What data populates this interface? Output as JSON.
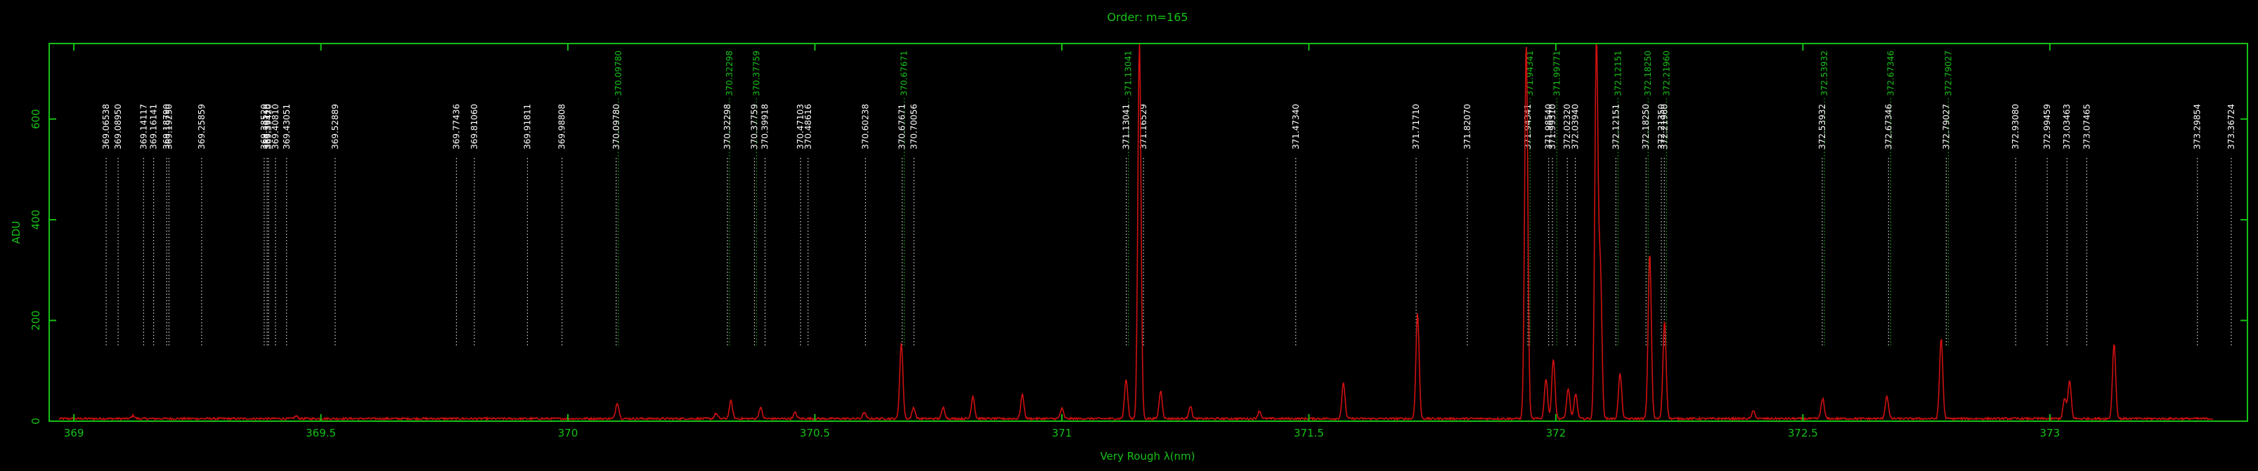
{
  "chart_data": {
    "type": "line",
    "title": "Order: m=165",
    "xlabel": "Very Rough λ(nm)",
    "ylabel": "ADU",
    "xlim": [
      368.95,
      373.4
    ],
    "ylim": [
      0,
      750
    ],
    "x_ticks": [
      369,
      369.5,
      370,
      370.5,
      371,
      371.5,
      372,
      372.5,
      373
    ],
    "x_tick_labels": [
      "369",
      "369.5",
      "370",
      "370.5",
      "371",
      "371.5",
      "372",
      "372.5",
      "373"
    ],
    "y_ticks": [
      0,
      200,
      400,
      600
    ],
    "y_tick_labels": [
      "0",
      "200",
      "400",
      "600"
    ],
    "grid": false,
    "series_color": "#d01010",
    "axis_color": "#16c016",
    "reference_lines_white": [
      {
        "x": 369.06538,
        "label": "369.06538"
      },
      {
        "x": 369.0895,
        "label": "369.08950"
      },
      {
        "x": 369.14117,
        "label": "369.14117"
      },
      {
        "x": 369.16141,
        "label": "369.16141"
      },
      {
        "x": 369.1879,
        "label": "369.18790"
      },
      {
        "x": 369.1925,
        "label": "369.19250"
      },
      {
        "x": 369.25859,
        "label": "369.25859"
      },
      {
        "x": 369.3852,
        "label": "369.38520"
      },
      {
        "x": 369.3911,
        "label": "369.39110"
      },
      {
        "x": 369.3942,
        "label": "369.39420"
      },
      {
        "x": 369.4081,
        "label": "369.40810"
      },
      {
        "x": 369.43051,
        "label": "369.43051"
      },
      {
        "x": 369.52889,
        "label": "369.52889"
      },
      {
        "x": 369.77436,
        "label": "369.77436"
      },
      {
        "x": 369.8106,
        "label": "369.81060"
      },
      {
        "x": 369.91811,
        "label": "369.91811"
      },
      {
        "x": 369.98808,
        "label": "369.98808"
      },
      {
        "x": 370.0978,
        "label": "370.09780"
      },
      {
        "x": 370.32298,
        "label": "370.32298"
      },
      {
        "x": 370.37759,
        "label": "370.37759"
      },
      {
        "x": 370.39918,
        "label": "370.39918"
      },
      {
        "x": 370.47103,
        "label": "370.47103"
      },
      {
        "x": 370.48616,
        "label": "370.48616"
      },
      {
        "x": 370.60238,
        "label": "370.60238"
      },
      {
        "x": 370.67671,
        "label": "370.67671"
      },
      {
        "x": 370.70056,
        "label": "370.70056"
      },
      {
        "x": 371.13041,
        "label": "371.13041"
      },
      {
        "x": 371.16529,
        "label": "371.16529"
      },
      {
        "x": 371.4734,
        "label": "371.47340"
      },
      {
        "x": 371.7171,
        "label": "371.71710"
      },
      {
        "x": 371.8207,
        "label": "371.82070"
      },
      {
        "x": 371.94341,
        "label": "371.94341"
      },
      {
        "x": 371.9854,
        "label": "371.98540"
      },
      {
        "x": 371.9931,
        "label": "371.99310"
      },
      {
        "x": 372.0232,
        "label": "372.02320"
      },
      {
        "x": 372.0394,
        "label": "372.03940"
      },
      {
        "x": 372.12151,
        "label": "372.12151"
      },
      {
        "x": 372.1825,
        "label": "372.18250"
      },
      {
        "x": 372.2135,
        "label": "372.21350"
      },
      {
        "x": 372.2196,
        "label": "372.21960"
      },
      {
        "x": 372.53932,
        "label": "372.53932"
      },
      {
        "x": 372.67346,
        "label": "372.67346"
      },
      {
        "x": 372.79027,
        "label": "372.79027"
      },
      {
        "x": 372.9308,
        "label": "372.93080"
      },
      {
        "x": 372.99459,
        "label": "372.99459"
      },
      {
        "x": 373.03463,
        "label": "373.03463"
      },
      {
        "x": 373.07465,
        "label": "373.07465"
      },
      {
        "x": 373.29854,
        "label": "373.29854"
      },
      {
        "x": 373.36724,
        "label": "373.36724"
      }
    ],
    "reference_lines_green": [
      {
        "x": 370.0978,
        "label": "370.09780"
      },
      {
        "x": 370.32298,
        "label": "370.32298"
      },
      {
        "x": 370.37759,
        "label": "370.37759"
      },
      {
        "x": 370.67671,
        "label": "370.67671"
      },
      {
        "x": 371.13041,
        "label": "371.13041"
      },
      {
        "x": 371.94341,
        "label": "371.94341"
      },
      {
        "x": 371.99771,
        "label": "371.99771"
      },
      {
        "x": 372.12151,
        "label": "372.12151"
      },
      {
        "x": 372.1825,
        "label": "372.18250"
      },
      {
        "x": 372.2196,
        "label": "372.21960"
      },
      {
        "x": 372.53932,
        "label": "372.53932"
      },
      {
        "x": 372.67346,
        "label": "372.67346"
      },
      {
        "x": 372.79027,
        "label": "372.79027"
      }
    ],
    "peaks": [
      {
        "x": 369.12,
        "y": 6
      },
      {
        "x": 369.45,
        "y": 5
      },
      {
        "x": 370.1,
        "y": 32
      },
      {
        "x": 370.3,
        "y": 10
      },
      {
        "x": 370.33,
        "y": 35
      },
      {
        "x": 370.39,
        "y": 22
      },
      {
        "x": 370.46,
        "y": 12
      },
      {
        "x": 370.6,
        "y": 12
      },
      {
        "x": 370.675,
        "y": 150
      },
      {
        "x": 370.7,
        "y": 22
      },
      {
        "x": 370.76,
        "y": 22
      },
      {
        "x": 370.82,
        "y": 45
      },
      {
        "x": 370.92,
        "y": 48
      },
      {
        "x": 371.0,
        "y": 20
      },
      {
        "x": 371.13,
        "y": 78
      },
      {
        "x": 371.157,
        "y": 750
      },
      {
        "x": 371.2,
        "y": 55
      },
      {
        "x": 371.26,
        "y": 25
      },
      {
        "x": 371.4,
        "y": 15
      },
      {
        "x": 371.57,
        "y": 70
      },
      {
        "x": 371.72,
        "y": 210
      },
      {
        "x": 371.94,
        "y": 750
      },
      {
        "x": 371.98,
        "y": 80
      },
      {
        "x": 371.995,
        "y": 120
      },
      {
        "x": 372.025,
        "y": 60
      },
      {
        "x": 372.04,
        "y": 50
      },
      {
        "x": 372.082,
        "y": 750
      },
      {
        "x": 372.09,
        "y": 290
      },
      {
        "x": 372.13,
        "y": 90
      },
      {
        "x": 372.19,
        "y": 330
      },
      {
        "x": 372.22,
        "y": 195
      },
      {
        "x": 372.4,
        "y": 15
      },
      {
        "x": 372.54,
        "y": 40
      },
      {
        "x": 372.67,
        "y": 45
      },
      {
        "x": 372.78,
        "y": 160
      },
      {
        "x": 373.03,
        "y": 40
      },
      {
        "x": 373.04,
        "y": 75
      },
      {
        "x": 373.13,
        "y": 150
      }
    ],
    "baseline": 3
  }
}
